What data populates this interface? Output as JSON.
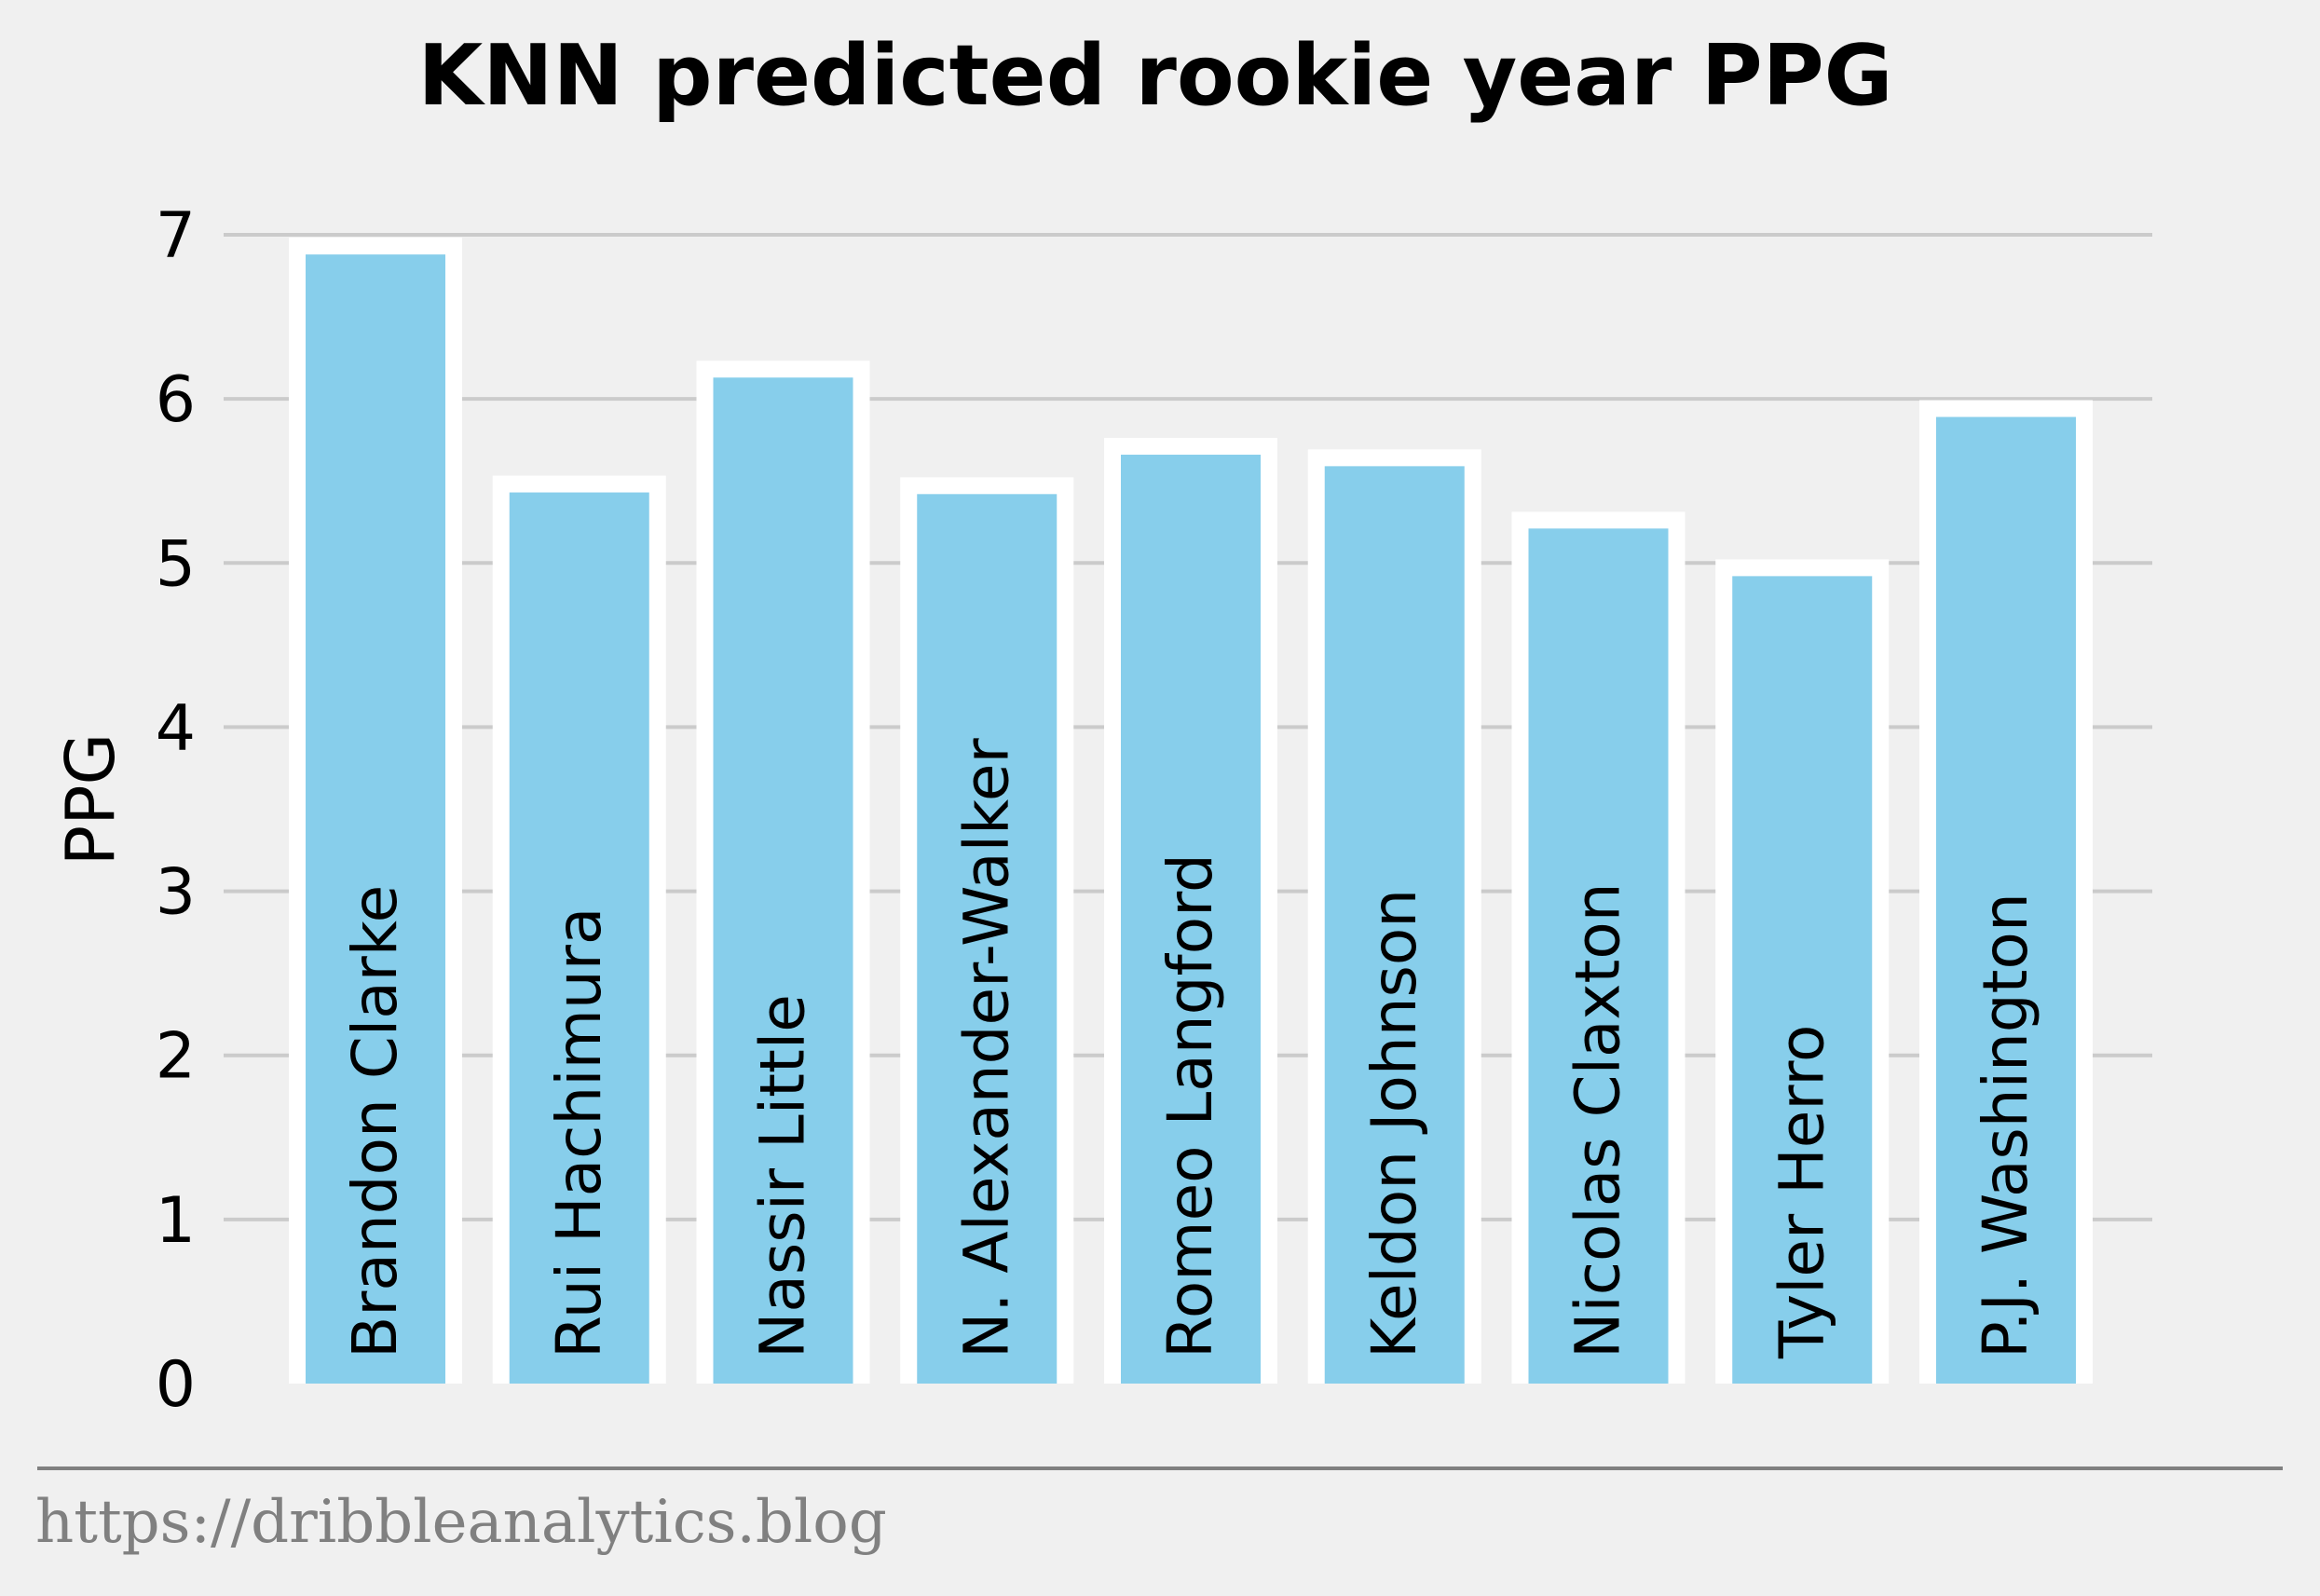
{
  "chart_data": {
    "type": "bar",
    "title": "KNN predicted rookie year PPG",
    "ylabel": "PPG",
    "xlabel": "",
    "categories": [
      "Brandon Clarke",
      "Rui Hachimura",
      "Nassir Little",
      "N. Alexander-Walker",
      "Romeo Langford",
      "Keldon Johnson",
      "Nicolas Claxton",
      "Tyler Herro",
      "P.J. Washington"
    ],
    "values": [
      6.88,
      5.43,
      6.13,
      5.42,
      5.66,
      5.59,
      5.21,
      4.92,
      5.89
    ],
    "ylim": [
      0,
      7
    ],
    "yticks": [
      0,
      1,
      2,
      3,
      4,
      5,
      6,
      7
    ],
    "grid": "horizontal",
    "bar_labels_inside": true
  },
  "colors": {
    "background": "#f0f0f0",
    "bar_fill": "#87ceeb",
    "bar_edge": "#ffffff",
    "grid": "#cbcbcb",
    "footer_text": "#808080",
    "footer_line": "#808080"
  },
  "footer": {
    "source": "https://dribbleanalytics.blog"
  }
}
